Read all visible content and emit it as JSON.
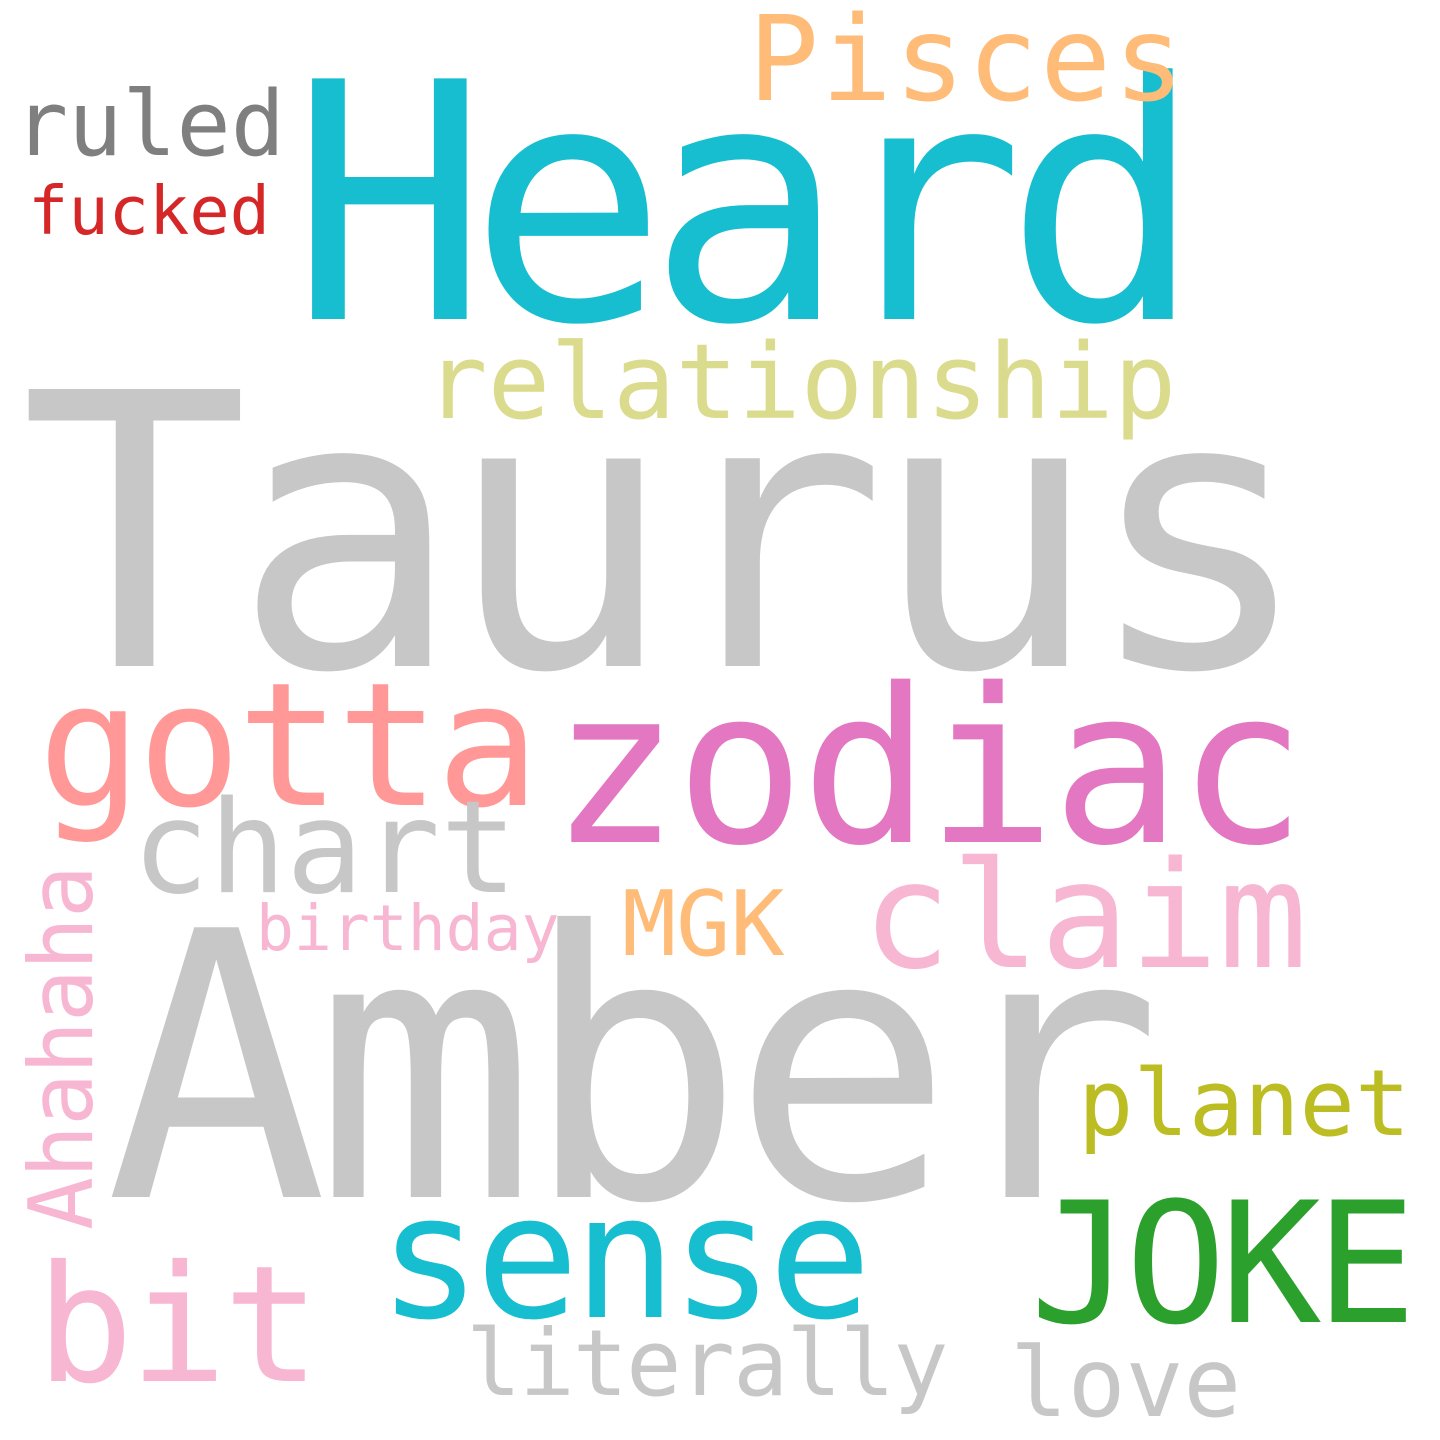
{
  "words": [
    {
      "text": "Heard",
      "color": "#17becf"
    },
    {
      "text": "Taurus",
      "color": "#c7c7c7"
    },
    {
      "text": "Amber",
      "color": "#c7c7c7"
    },
    {
      "text": "zodiac",
      "color": "#e377c2"
    },
    {
      "text": "gotta",
      "color": "#ff9896"
    },
    {
      "text": "sense",
      "color": "#17becf"
    },
    {
      "text": "JOKE",
      "color": "#2ca02c"
    },
    {
      "text": "bit",
      "color": "#f7b6d2"
    },
    {
      "text": "Pisces",
      "color": "#ffbb78"
    },
    {
      "text": "relationship",
      "color": "#dbdb8d"
    },
    {
      "text": "chart",
      "color": "#c7c7c7"
    },
    {
      "text": "claim",
      "color": "#f7b6d2"
    },
    {
      "text": "MGK",
      "color": "#ffbb78"
    },
    {
      "text": "birthday",
      "color": "#f7b6d2"
    },
    {
      "text": "planet",
      "color": "#bcbd22"
    },
    {
      "text": "literally",
      "color": "#c7c7c7"
    },
    {
      "text": "love",
      "color": "#c7c7c7"
    },
    {
      "text": "ruled",
      "color": "#7f7f7f"
    },
    {
      "text": "fucked",
      "color": "#d62728"
    },
    {
      "text": "Ahahaha",
      "color": "#f7b6d2"
    }
  ]
}
